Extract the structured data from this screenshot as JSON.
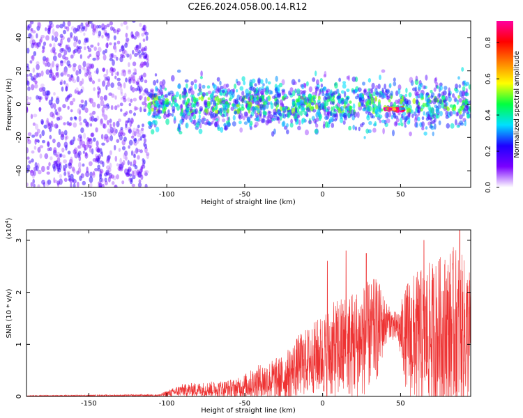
{
  "title": "C2E6.2024.058.00.14.R12",
  "chart_data": [
    {
      "type": "heatmap",
      "title": "C2E6.2024.058.00.14.R12",
      "xlabel": "Height of straight line (km)",
      "ylabel": "Frequency (Hz)",
      "xlim": [
        -190,
        95
      ],
      "ylim": [
        -50,
        50
      ],
      "xticks": [
        -150,
        -100,
        -50,
        0,
        50
      ],
      "yticks": [
        -40,
        -20,
        0,
        20,
        40
      ],
      "grid": false,
      "description_of_signal": [
        {
          "x_range": [
            -190,
            -112
          ],
          "freq_center": 0,
          "freq_spread": 50,
          "amplitude": 0.15
        },
        {
          "x_range": [
            -112,
            95
          ],
          "freq_center": 0,
          "freq_spread": 12,
          "amplitude": 0.28
        },
        {
          "x_range": [
            40,
            52
          ],
          "freq_center": -3,
          "freq_spread": 1,
          "amplitude": 0.85
        }
      ],
      "colorbar": {
        "label": "Normalized spectral amplitude",
        "range": [
          0.0,
          0.92
        ],
        "ticks": [
          0.0,
          0.2,
          0.4,
          0.6,
          0.8
        ],
        "tick_labels": [
          "0.0",
          "0.2",
          "0.4",
          "0.6",
          "0.8"
        ],
        "colors": [
          "#ffffff",
          "#7a00ff",
          "#1e00ff",
          "#00e0ff",
          "#00ff40",
          "#ffff00",
          "#ff8000",
          "#ff0000",
          "#ff00a0"
        ]
      }
    },
    {
      "type": "line",
      "xlabel": "Height of straight line (km)",
      "ylabel": "SNR (10 * v/v)",
      "y_multiplier_label": "(x10",
      "y_multiplier_exp": "4",
      "xlim": [
        -190,
        95
      ],
      "ylim": [
        0,
        3.2
      ],
      "xticks": [
        -150,
        -100,
        -50,
        0,
        50
      ],
      "yticks": [
        0,
        1,
        2,
        3
      ],
      "line_color": "#ee3333",
      "envelope": [
        {
          "x": -190,
          "mean": 0.01,
          "spread": 0.01
        },
        {
          "x": -105,
          "mean": 0.02,
          "spread": 0.02
        },
        {
          "x": -100,
          "mean": 0.05,
          "spread": 0.06
        },
        {
          "x": -90,
          "mean": 0.12,
          "spread": 0.12
        },
        {
          "x": -70,
          "mean": 0.14,
          "spread": 0.15
        },
        {
          "x": -55,
          "mean": 0.16,
          "spread": 0.18
        },
        {
          "x": -40,
          "mean": 0.28,
          "spread": 0.35
        },
        {
          "x": -25,
          "mean": 0.35,
          "spread": 0.45
        },
        {
          "x": -15,
          "mean": 0.6,
          "spread": 0.6
        },
        {
          "x": -5,
          "mean": 0.75,
          "spread": 0.7
        },
        {
          "x": 0,
          "mean": 0.8,
          "spread": 0.8
        },
        {
          "x": 10,
          "mean": 0.9,
          "spread": 1.0
        },
        {
          "x": 25,
          "mean": 1.05,
          "spread": 1.1
        },
        {
          "x": 35,
          "mean": 1.3,
          "spread": 1.0
        },
        {
          "x": 42,
          "mean": 1.45,
          "spread": 0.3
        },
        {
          "x": 48,
          "mean": 1.3,
          "spread": 0.3
        },
        {
          "x": 55,
          "mean": 1.1,
          "spread": 1.2
        },
        {
          "x": 70,
          "mean": 1.2,
          "spread": 1.4
        },
        {
          "x": 85,
          "mean": 1.3,
          "spread": 1.6
        },
        {
          "x": 95,
          "mean": 1.2,
          "spread": 1.3
        }
      ],
      "peaks": [
        {
          "x": 3,
          "y": 2.6
        },
        {
          "x": 15,
          "y": 2.8
        },
        {
          "x": 28,
          "y": 2.75
        },
        {
          "x": 65,
          "y": 3.0
        },
        {
          "x": 88,
          "y": 3.2
        }
      ]
    }
  ]
}
